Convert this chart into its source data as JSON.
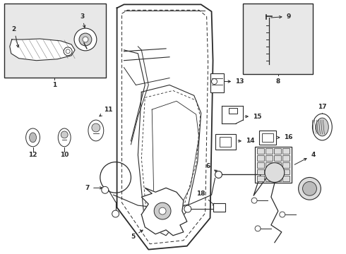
{
  "bg_color": "#ffffff",
  "line_color": "#2a2a2a",
  "light_gray": "#e8e8e8",
  "figsize": [
    4.9,
    3.6
  ],
  "dpi": 100,
  "fs": 6.5
}
